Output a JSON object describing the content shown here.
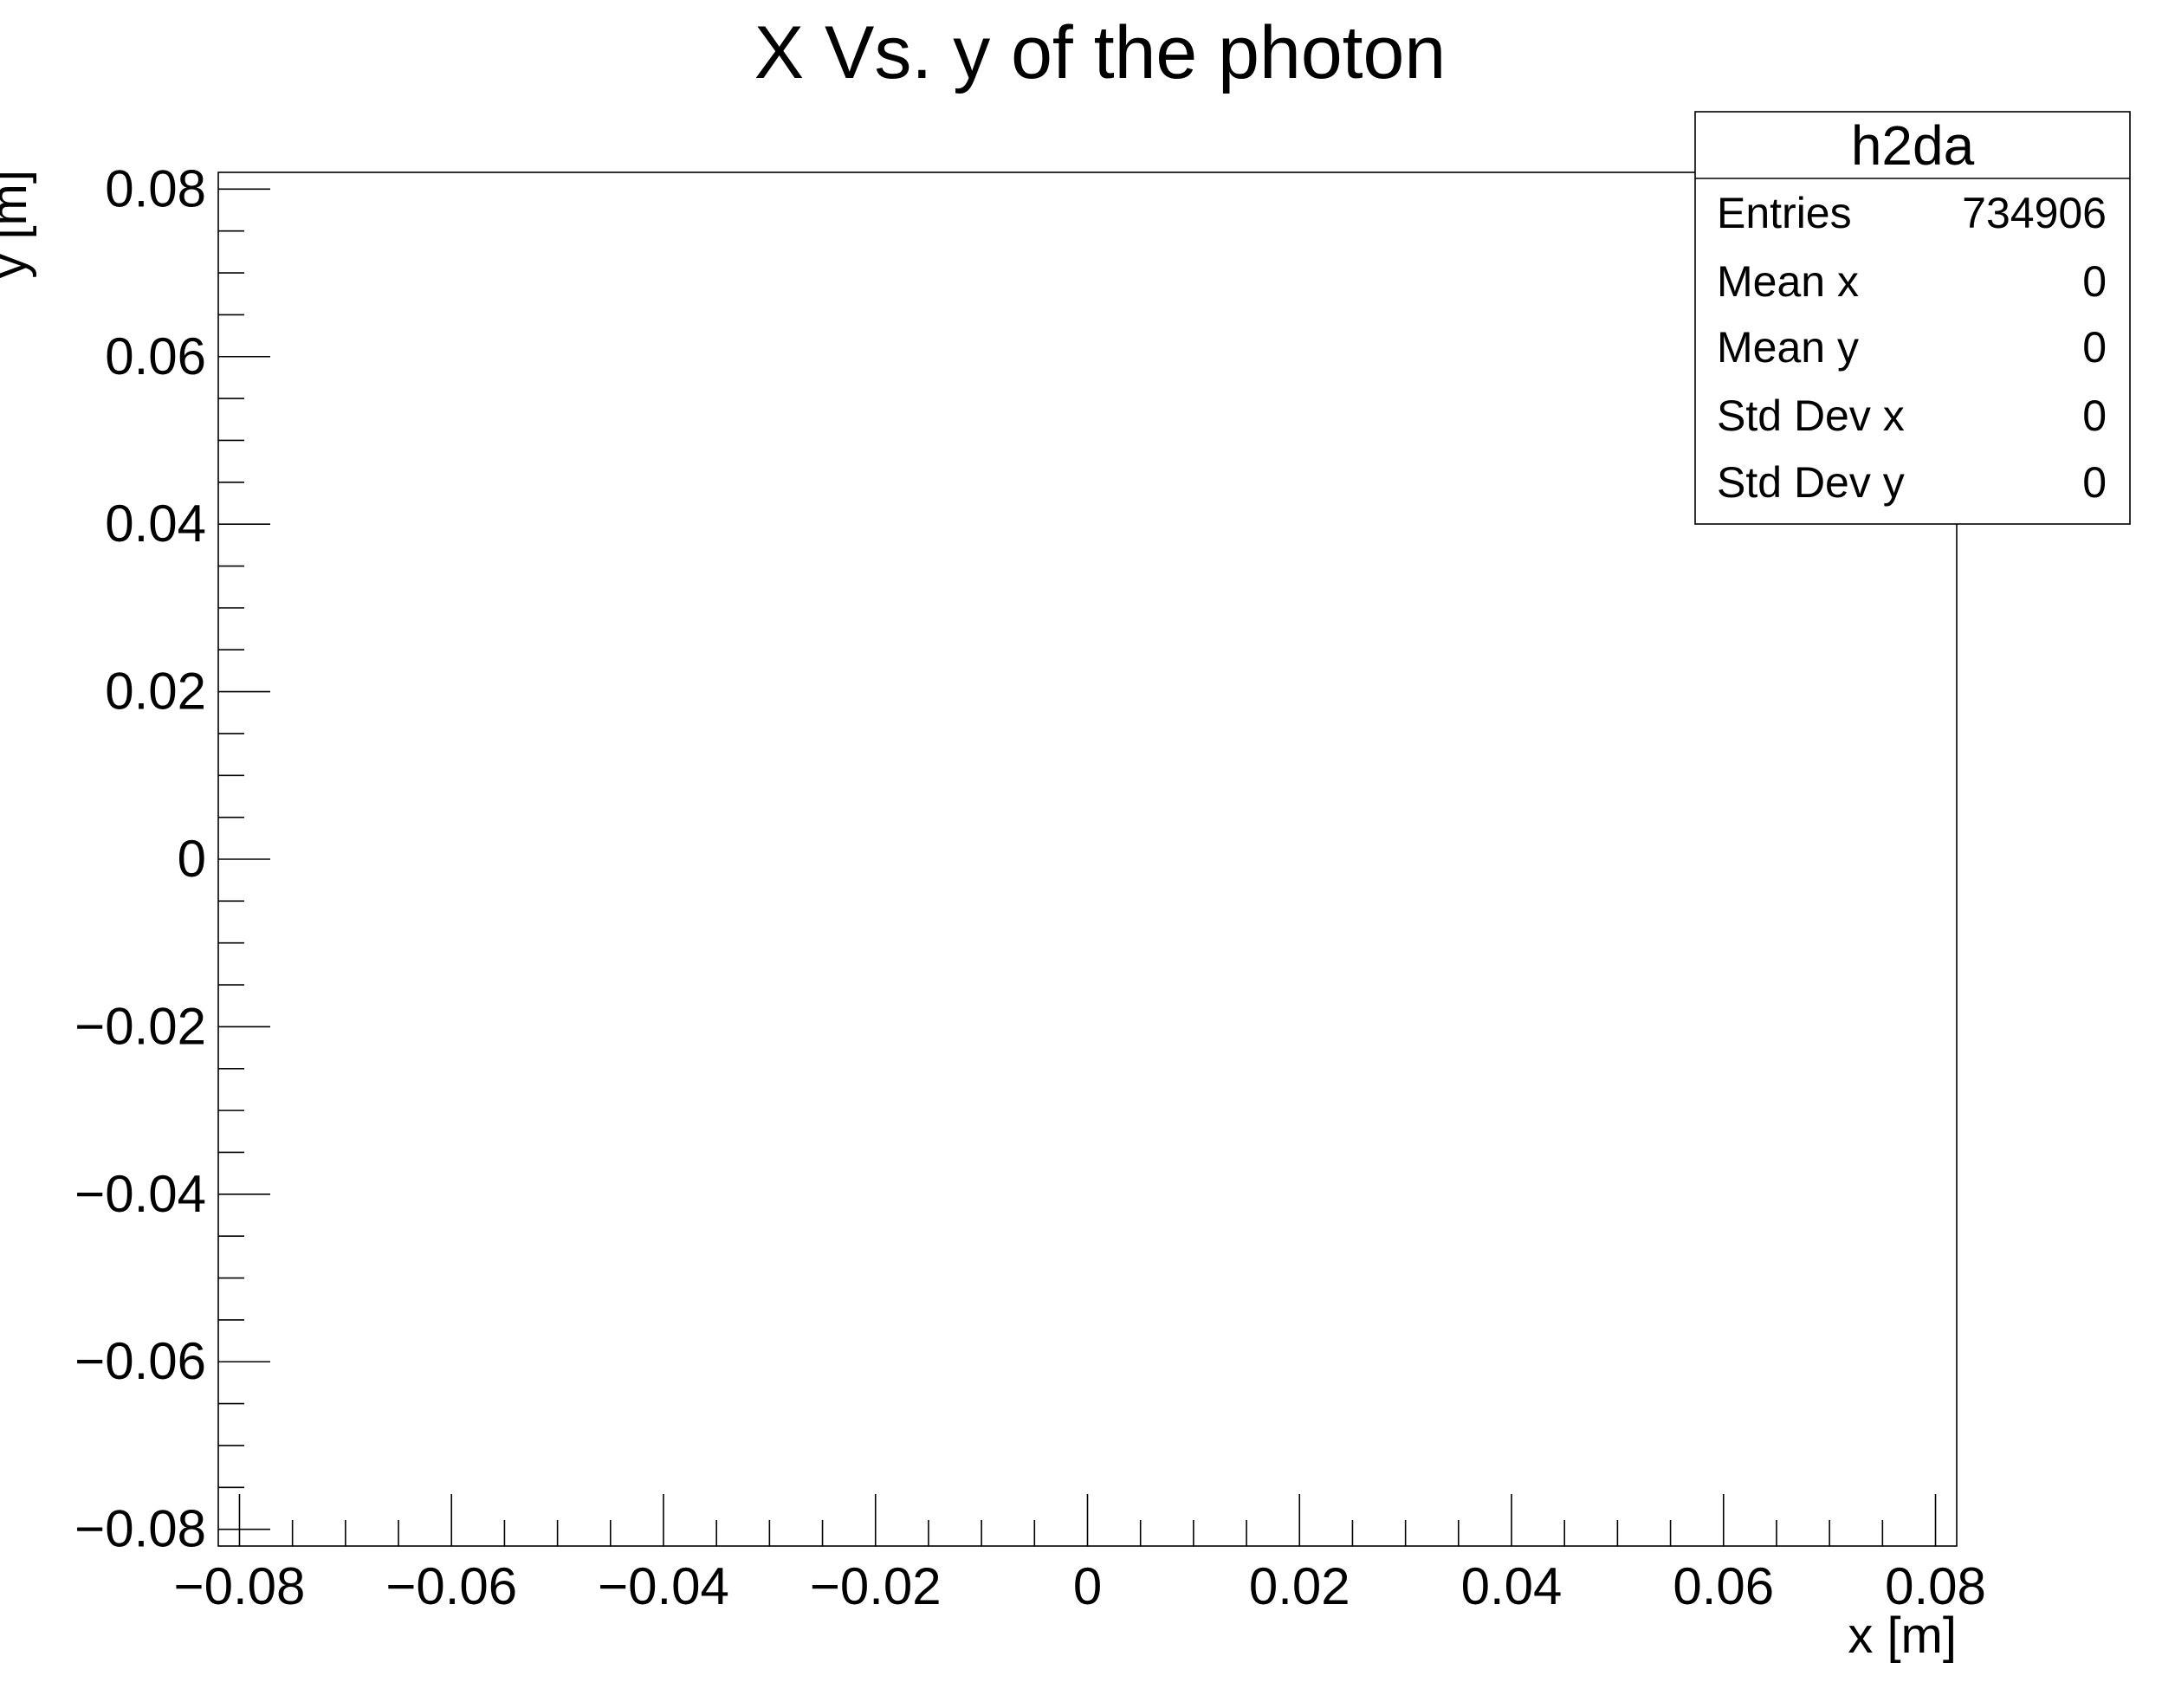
{
  "chart_data": {
    "type": "heatmap",
    "title": "X  Vs. y of the photon",
    "xlabel": "x [m]",
    "ylabel": "y [m]",
    "xlim": [
      -0.082,
      0.082
    ],
    "ylim": [
      -0.082,
      0.082
    ],
    "x_ticks": [
      -0.08,
      -0.06,
      -0.04,
      -0.02,
      0,
      0.02,
      0.04,
      0.06,
      0.08
    ],
    "x_tick_labels": [
      "−0.08",
      "−0.06",
      "−0.04",
      "−0.02",
      "0",
      "0.02",
      "0.04",
      "0.06",
      "0.08"
    ],
    "y_ticks": [
      0.08,
      0.06,
      0.04,
      0.02,
      0,
      -0.02,
      -0.04,
      -0.06,
      -0.08
    ],
    "y_tick_labels": [
      "0.08",
      "0.06",
      "0.04",
      "0.02",
      "0",
      "−0.02",
      "−0.04",
      "−0.06",
      "−0.08"
    ],
    "points": [],
    "grid": false,
    "legend": "none",
    "stats_box": {
      "name": "h2da",
      "placement": "top-right",
      "rows": [
        {
          "label": "Entries",
          "value": "734906"
        },
        {
          "label": "Mean x",
          "value": "0"
        },
        {
          "label": "Mean y",
          "value": "0"
        },
        {
          "label": "Std Dev x",
          "value": "0"
        },
        {
          "label": "Std Dev y",
          "value": "0"
        }
      ]
    }
  }
}
